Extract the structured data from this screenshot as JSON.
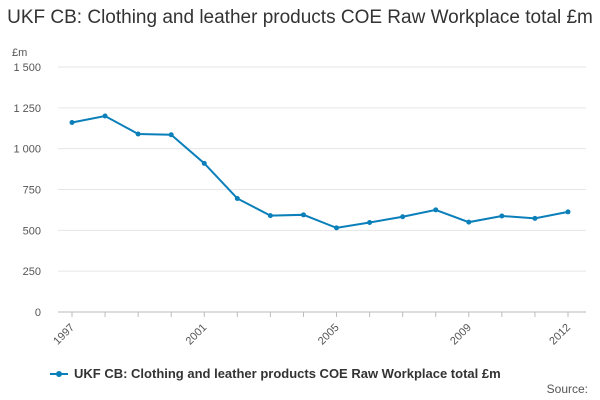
{
  "chart_data": {
    "type": "line",
    "title": "UKF CB: Clothing and leather products COE Raw Workplace total £m",
    "ylabel": "£m",
    "xlabel": "",
    "x": [
      "1997",
      "1998",
      "1999",
      "2000",
      "2001",
      "2002",
      "2003",
      "2004",
      "2005",
      "2006",
      "2007",
      "2008",
      "2009",
      "2010",
      "2011",
      "2012"
    ],
    "x_tick_labels": [
      "1997",
      "2001",
      "2005",
      "2009",
      "2012"
    ],
    "y_tick_labels": [
      "0",
      "250",
      "500",
      "750",
      "1 000",
      "1 250",
      "1 500"
    ],
    "ylim": [
      0,
      1500
    ],
    "grid": true,
    "legend_position": "bottom-left",
    "series": [
      {
        "name": "UKF CB: Clothing and leather products COE Raw Workplace total £m",
        "color": "#0a7fb9",
        "values": [
          1160,
          1200,
          1090,
          1085,
          910,
          695,
          590,
          595,
          515,
          548,
          583,
          625,
          550,
          588,
          573,
          613
        ]
      }
    ]
  },
  "footer": {
    "source_label": "Source:"
  }
}
